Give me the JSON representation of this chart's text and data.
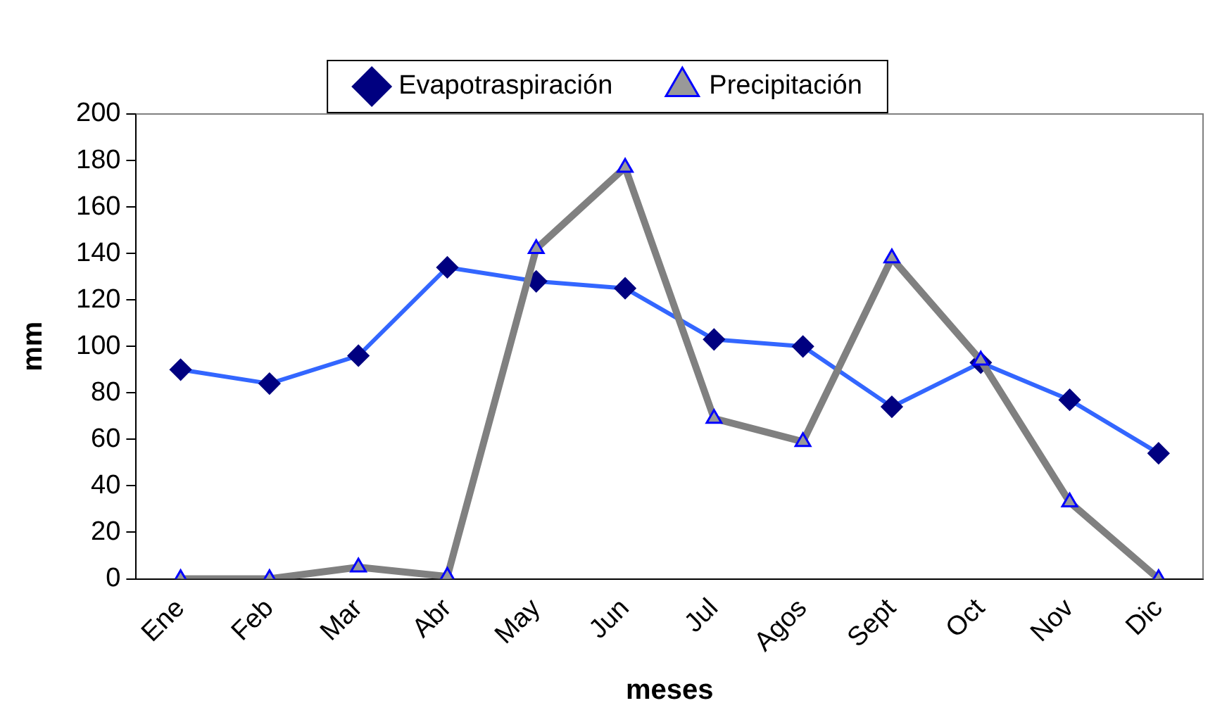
{
  "chart_data": {
    "type": "line",
    "xlabel": "meses",
    "ylabel": "mm",
    "categories": [
      "Ene",
      "Feb",
      "Mar",
      "Abr",
      "May",
      "Jun",
      "Jul",
      "Agos",
      "Sept",
      "Oct",
      "Nov",
      "Dic"
    ],
    "series": [
      {
        "name": "Evapotraspiración",
        "color": "#3366ff",
        "marker": "diamond",
        "values": [
          90,
          84,
          96,
          134,
          128,
          125,
          103,
          100,
          74,
          93,
          77,
          54
        ]
      },
      {
        "name": "Precipitación",
        "color": "#808080",
        "marker": "triangle",
        "values": [
          0,
          0,
          5,
          1,
          142,
          177,
          69,
          59,
          138,
          94,
          33,
          0
        ]
      }
    ],
    "ylim": [
      0,
      200
    ],
    "yticks": [
      0,
      20,
      40,
      60,
      80,
      100,
      120,
      140,
      160,
      180,
      200
    ],
    "grid": false,
    "legend": "top",
    "line_style": "solid"
  }
}
